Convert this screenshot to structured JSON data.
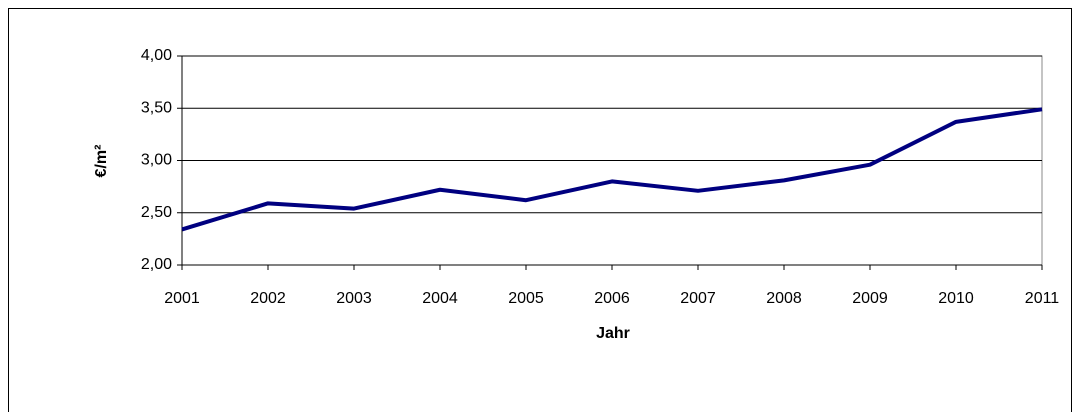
{
  "chart_data": {
    "type": "line",
    "x_label": "Jahr",
    "y_label": "€/m²",
    "x": [
      2001,
      2002,
      2003,
      2004,
      2005,
      2006,
      2007,
      2008,
      2009,
      2010,
      2011
    ],
    "series": [
      {
        "color": "#000080",
        "values": [
          2.34,
          2.59,
          2.54,
          2.72,
          2.62,
          2.8,
          2.71,
          2.81,
          2.96,
          3.37,
          3.49
        ]
      }
    ],
    "xlim": [
      2001,
      2011
    ],
    "xticks": [
      2001,
      2002,
      2003,
      2004,
      2005,
      2006,
      2007,
      2008,
      2009,
      2010,
      2011
    ],
    "ylim": [
      2,
      4
    ],
    "yticks": [
      {
        "value": 2,
        "label": "2,00"
      },
      {
        "value": 2.5,
        "label": "2,50"
      },
      {
        "value": 3,
        "label": "3,00"
      },
      {
        "value": 3.5,
        "label": "3,50"
      },
      {
        "value": 4,
        "label": "4,00"
      }
    ],
    "grid": true
  }
}
